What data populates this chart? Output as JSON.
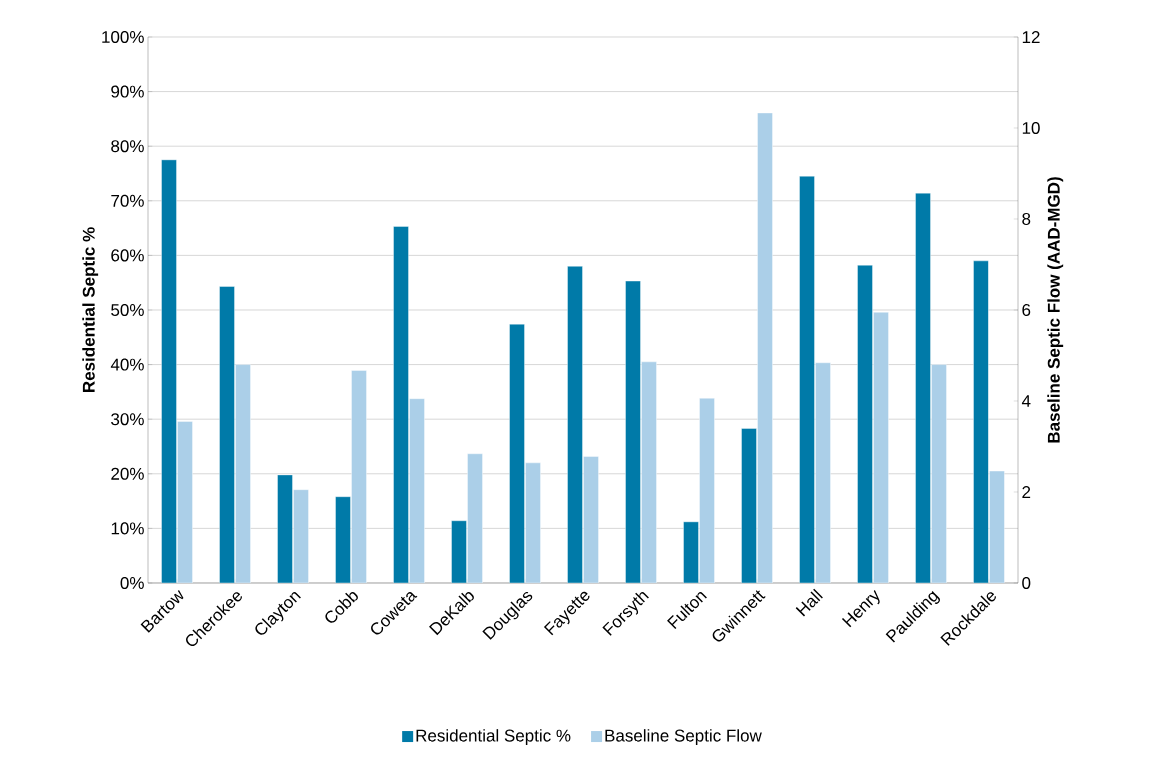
{
  "chart_data": {
    "type": "bar",
    "ylabel": "Residential Septic %",
    "y2label": "Baseline Septic Flow (AAD-MGD)",
    "categories": [
      "Bartow",
      "Cherokee",
      "Clayton",
      "Cobb",
      "Coweta",
      "DeKalb",
      "Douglas",
      "Fayette",
      "Forsyth",
      "Fulton",
      "Gwinnett",
      "Hall",
      "Henry",
      "Paulding",
      "Rockdale"
    ],
    "series": [
      {
        "name": "Residential Septic %",
        "color": "#007aa8",
        "values": [
          77.5,
          54.3,
          19.8,
          15.8,
          65.3,
          11.4,
          47.4,
          58.0,
          55.3,
          11.2,
          28.3,
          74.5,
          58.2,
          71.4,
          59.0
        ]
      },
      {
        "name": "Baseline Septic Flow",
        "color": "#abcfe8",
        "axis": "y2",
        "values": [
          3.55,
          4.8,
          2.05,
          4.67,
          4.05,
          2.84,
          2.64,
          2.78,
          4.86,
          4.06,
          10.33,
          4.84,
          5.95,
          4.8,
          2.46
        ]
      }
    ],
    "ylim": [
      0,
      100
    ],
    "yticks": [
      {
        "value": 0,
        "label": "0%"
      },
      {
        "value": 10,
        "label": "10%"
      },
      {
        "value": 20,
        "label": "20%"
      },
      {
        "value": 30,
        "label": "30%"
      },
      {
        "value": 40,
        "label": "40%"
      },
      {
        "value": 50,
        "label": "50%"
      },
      {
        "value": 60,
        "label": "60%"
      },
      {
        "value": 70,
        "label": "70%"
      },
      {
        "value": 80,
        "label": "80%"
      },
      {
        "value": 90,
        "label": "90%"
      },
      {
        "value": 100,
        "label": "100%"
      }
    ],
    "y2lim": [
      0,
      12
    ],
    "y2ticks": [
      0,
      2,
      4,
      6,
      8,
      10,
      12
    ],
    "grid": "y",
    "legend": "bottom"
  }
}
